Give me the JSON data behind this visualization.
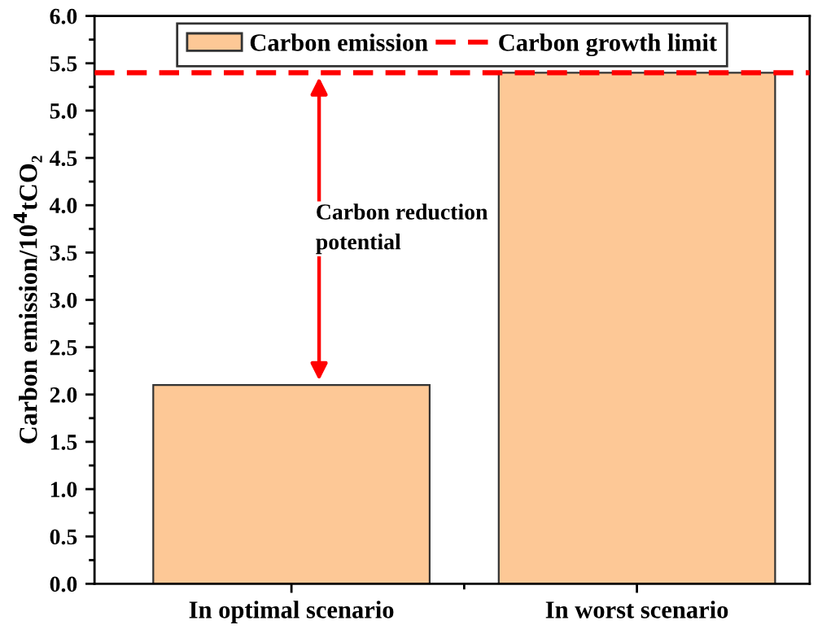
{
  "chart_data": {
    "type": "bar",
    "ylabel": "Carbon emission/10$^{4}$tCO₂",
    "categories": [
      "In optimal scenario",
      "In worst scenario"
    ],
    "series": [
      {
        "name": "Carbon emission",
        "color": "#fdc896",
        "values": [
          2.1,
          5.4
        ]
      }
    ],
    "ylim": [
      0,
      6
    ],
    "yticks": [
      {
        "value": 0,
        "label": "0.0"
      },
      0.5,
      {
        "value": 1,
        "label": "1.0"
      },
      1.5,
      {
        "value": 2,
        "label": "2.0"
      },
      2.5,
      {
        "value": 3,
        "label": "3.0"
      },
      3.5,
      {
        "value": 4,
        "label": "4.0"
      },
      4.5,
      {
        "value": 5,
        "label": "5.0"
      },
      5.5,
      {
        "value": 6,
        "label": "6.0"
      }
    ],
    "ref_lines": [
      {
        "axis": "y",
        "value": 5.4,
        "label": "Carbon growth limit",
        "color": "#ff0000",
        "line_style": "dashed"
      }
    ],
    "annotations": [
      "Carbon reduction\npotential"
    ],
    "legend": "top",
    "grid": false
  }
}
